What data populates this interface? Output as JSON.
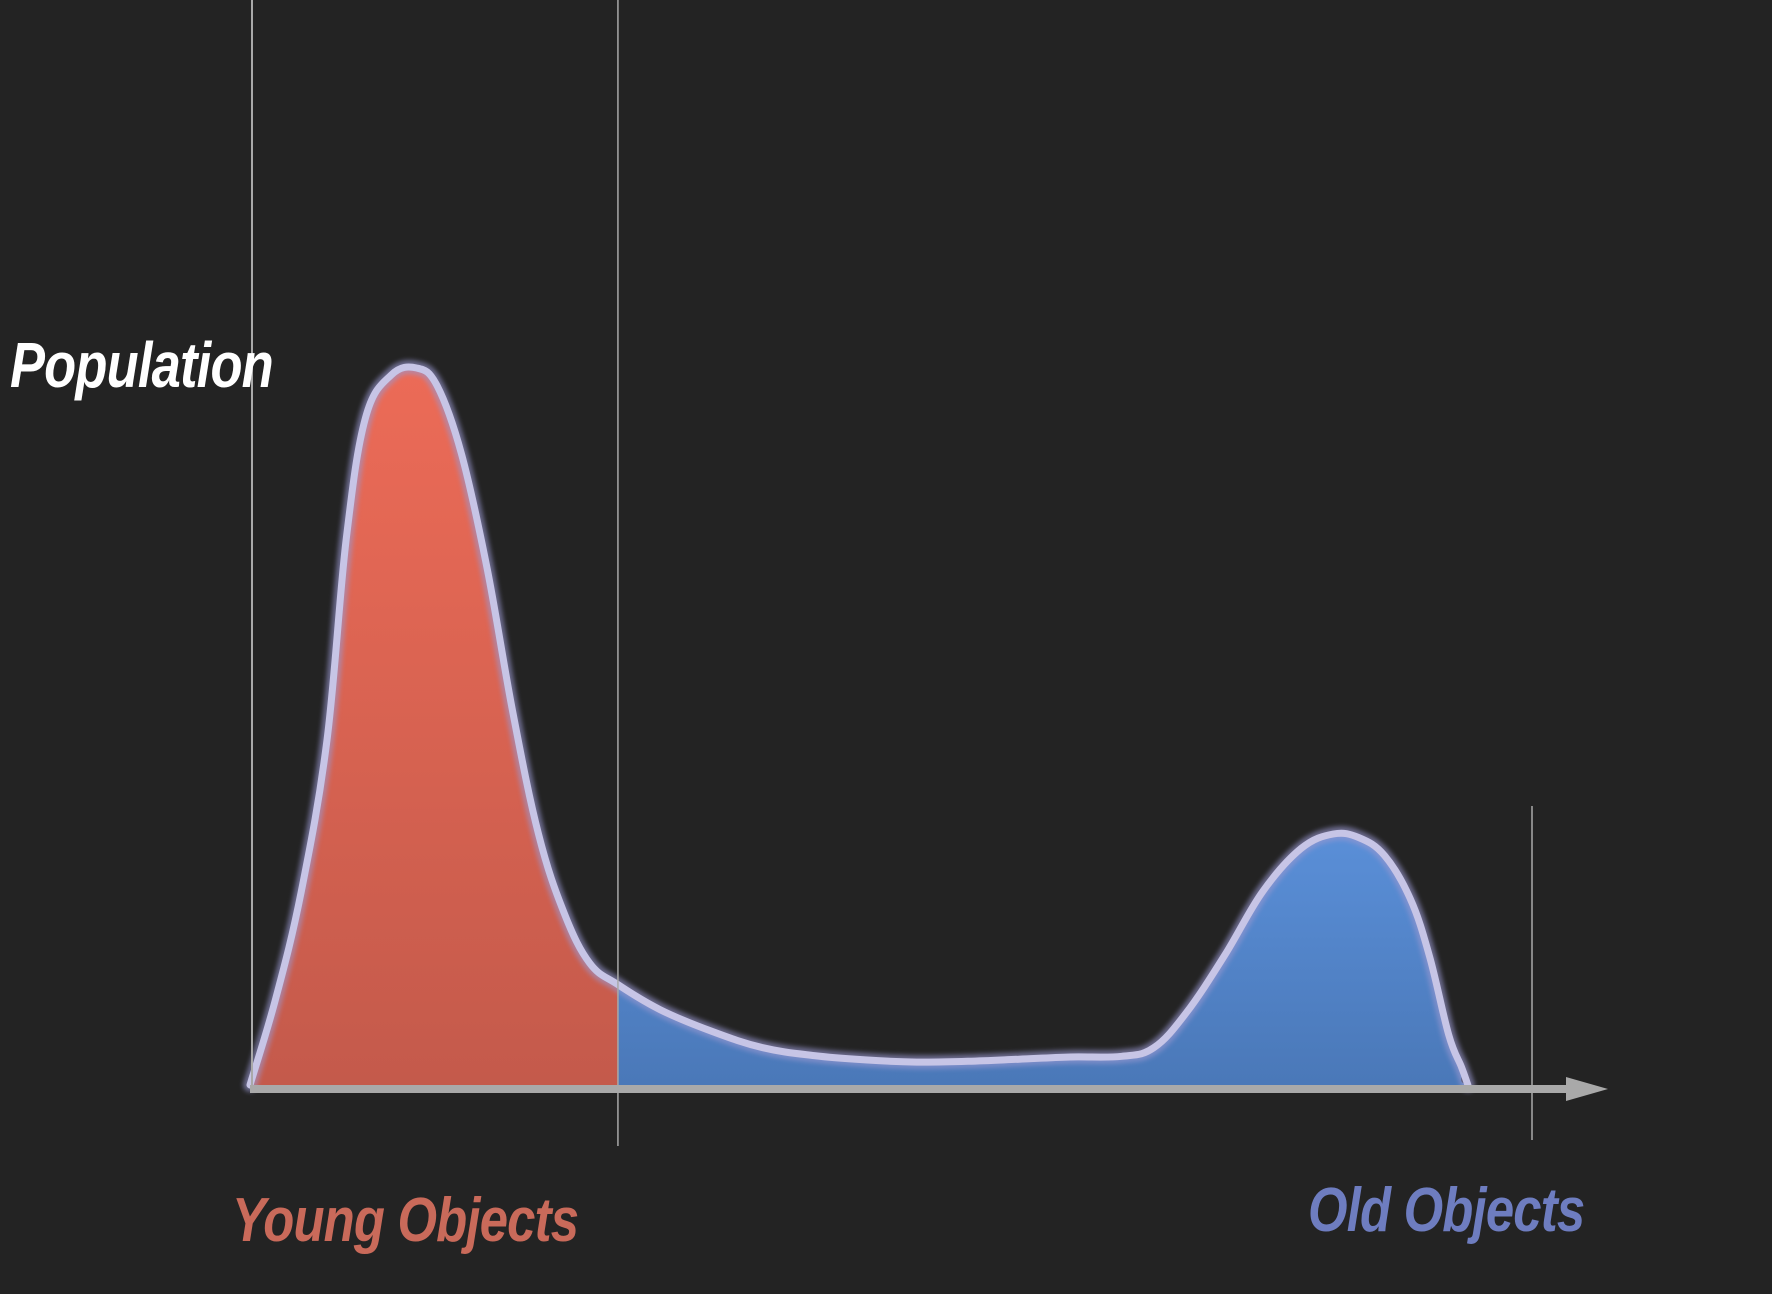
{
  "chart_data": {
    "type": "area",
    "ylabel": "Population",
    "xlabel": "",
    "x_axis_labels": {
      "left": "Young Objects",
      "right": "Old Objects"
    },
    "xlim": [
      0,
      100
    ],
    "ylim": [
      0,
      100
    ],
    "split_x": 28.7,
    "end_x": 100,
    "grid": false,
    "legend": "none",
    "x": [
      0,
      2,
      4,
      6,
      7.5,
      9,
      11,
      13,
      14.6,
      16.5,
      18.5,
      20.5,
      22.5,
      24.5,
      26.5,
      28.7,
      32,
      36,
      40,
      44,
      48,
      52,
      56,
      60,
      64,
      68,
      70.5,
      73,
      76,
      79,
      82,
      84.5,
      86.5,
      88.5,
      90.5,
      92,
      93.5,
      94.5,
      95,
      100
    ],
    "values": [
      0,
      12,
      27,
      48,
      76,
      93,
      99,
      100,
      97.5,
      88,
      72,
      52,
      35,
      24,
      17,
      14,
      10.5,
      7.5,
      5.2,
      4.1,
      3.5,
      3.2,
      3.3,
      3.6,
      3.9,
      4.0,
      5.2,
      10,
      18,
      27,
      33,
      35,
      34.5,
      32,
      26,
      18,
      7,
      2.5,
      0,
      0
    ],
    "colors": {
      "young_fill": "#e0604e",
      "old_fill": "#4f7fc6",
      "curve_stroke": "#c7c5e6",
      "axis": "#a9a9a9",
      "y_label": "#ffffff",
      "young_label": "#c96a5a",
      "old_label": "#6e7dc0",
      "background": "#232323"
    }
  }
}
